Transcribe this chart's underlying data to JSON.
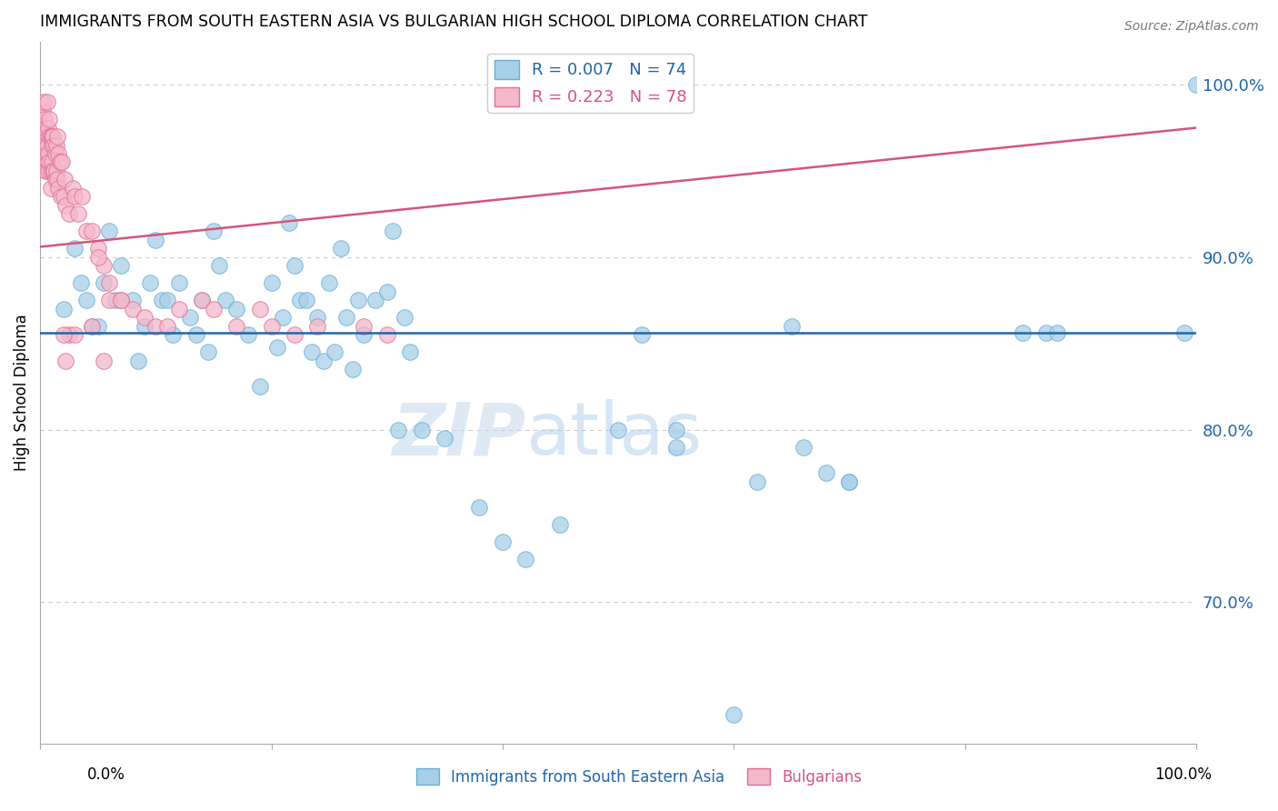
{
  "title": "IMMIGRANTS FROM SOUTH EASTERN ASIA VS BULGARIAN HIGH SCHOOL DIPLOMA CORRELATION CHART",
  "source": "Source: ZipAtlas.com",
  "ylabel": "High School Diploma",
  "watermark_zip": "ZIP",
  "watermark_atlas": "atlas",
  "y_tick_labels": [
    "100.0%",
    "90.0%",
    "80.0%",
    "70.0%"
  ],
  "y_tick_values": [
    1.0,
    0.9,
    0.8,
    0.7
  ],
  "x_range": [
    0.0,
    1.0
  ],
  "y_range": [
    0.618,
    1.025
  ],
  "legend_blue_r": "0.007",
  "legend_blue_n": "74",
  "legend_pink_r": "0.223",
  "legend_pink_n": "78",
  "blue_color": "#a8cfe8",
  "pink_color": "#f4b8cb",
  "blue_edge_color": "#6baed6",
  "pink_edge_color": "#e07090",
  "blue_line_color": "#2166ac",
  "pink_line_color": "#d6547a",
  "blue_trend_x": [
    0.0,
    1.0
  ],
  "blue_trend_y": [
    0.856,
    0.856
  ],
  "pink_trend_x": [
    0.0,
    1.0
  ],
  "pink_trend_y": [
    0.906,
    0.975
  ],
  "blue_scatter_x": [
    0.02,
    0.03,
    0.035,
    0.04,
    0.045,
    0.05,
    0.055,
    0.06,
    0.065,
    0.07,
    0.08,
    0.085,
    0.09,
    0.095,
    0.1,
    0.105,
    0.11,
    0.115,
    0.12,
    0.13,
    0.135,
    0.14,
    0.145,
    0.15,
    0.155,
    0.16,
    0.17,
    0.18,
    0.19,
    0.2,
    0.205,
    0.21,
    0.215,
    0.22,
    0.225,
    0.23,
    0.235,
    0.24,
    0.245,
    0.25,
    0.255,
    0.26,
    0.265,
    0.27,
    0.275,
    0.28,
    0.29,
    0.3,
    0.305,
    0.31,
    0.315,
    0.32,
    0.33,
    0.35,
    0.38,
    0.4,
    0.42,
    0.45,
    0.5,
    0.52,
    0.55,
    0.6,
    0.65,
    0.66,
    0.68,
    0.7,
    0.85,
    0.87,
    0.88,
    0.99,
    1.0,
    0.55,
    0.62,
    0.7
  ],
  "blue_scatter_y": [
    0.87,
    0.905,
    0.885,
    0.875,
    0.86,
    0.86,
    0.885,
    0.915,
    0.875,
    0.895,
    0.875,
    0.84,
    0.86,
    0.885,
    0.91,
    0.875,
    0.875,
    0.855,
    0.885,
    0.865,
    0.855,
    0.875,
    0.845,
    0.915,
    0.895,
    0.875,
    0.87,
    0.855,
    0.825,
    0.885,
    0.848,
    0.865,
    0.92,
    0.895,
    0.875,
    0.875,
    0.845,
    0.865,
    0.84,
    0.885,
    0.845,
    0.905,
    0.865,
    0.835,
    0.875,
    0.855,
    0.875,
    0.88,
    0.915,
    0.8,
    0.865,
    0.845,
    0.8,
    0.795,
    0.755,
    0.735,
    0.725,
    0.745,
    0.8,
    0.855,
    0.79,
    0.635,
    0.86,
    0.79,
    0.775,
    0.77,
    0.856,
    0.856,
    0.856,
    0.856,
    1.0,
    0.8,
    0.77,
    0.77
  ],
  "pink_scatter_x": [
    0.001,
    0.002,
    0.002,
    0.003,
    0.003,
    0.004,
    0.004,
    0.004,
    0.005,
    0.005,
    0.005,
    0.006,
    0.006,
    0.006,
    0.007,
    0.007,
    0.007,
    0.008,
    0.008,
    0.008,
    0.009,
    0.009,
    0.009,
    0.01,
    0.01,
    0.01,
    0.011,
    0.011,
    0.012,
    0.012,
    0.013,
    0.013,
    0.014,
    0.014,
    0.015,
    0.015,
    0.016,
    0.016,
    0.017,
    0.018,
    0.019,
    0.02,
    0.021,
    0.022,
    0.025,
    0.028,
    0.03,
    0.033,
    0.036,
    0.04,
    0.045,
    0.05,
    0.055,
    0.06,
    0.07,
    0.08,
    0.09,
    0.1,
    0.11,
    0.12,
    0.14,
    0.15,
    0.17,
    0.19,
    0.2,
    0.22,
    0.24,
    0.28,
    0.3,
    0.05,
    0.06,
    0.07,
    0.055,
    0.045,
    0.025,
    0.03,
    0.02,
    0.022
  ],
  "pink_scatter_y": [
    0.975,
    0.985,
    0.97,
    0.99,
    0.97,
    0.965,
    0.98,
    0.955,
    0.975,
    0.96,
    0.95,
    0.965,
    0.99,
    0.955,
    0.96,
    0.975,
    0.95,
    0.97,
    0.955,
    0.98,
    0.95,
    0.97,
    0.94,
    0.97,
    0.955,
    0.965,
    0.97,
    0.95,
    0.965,
    0.95,
    0.96,
    0.945,
    0.965,
    0.95,
    0.97,
    0.945,
    0.96,
    0.94,
    0.955,
    0.935,
    0.955,
    0.935,
    0.945,
    0.93,
    0.925,
    0.94,
    0.935,
    0.925,
    0.935,
    0.915,
    0.915,
    0.905,
    0.895,
    0.885,
    0.875,
    0.87,
    0.865,
    0.86,
    0.86,
    0.87,
    0.875,
    0.87,
    0.86,
    0.87,
    0.86,
    0.855,
    0.86,
    0.86,
    0.855,
    0.9,
    0.875,
    0.875,
    0.84,
    0.86,
    0.855,
    0.855,
    0.855,
    0.84
  ]
}
